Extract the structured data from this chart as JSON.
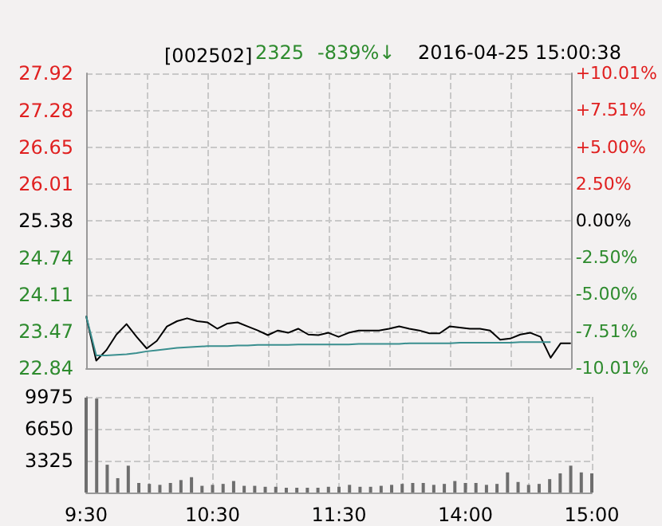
{
  "chart_data": [
    {
      "type": "line",
      "title": "[002502]",
      "annotations": [
        "2325",
        "-839%↓",
        "2016-04-25 15:00:38"
      ],
      "categories": [
        null,
        null,
        null,
        null,
        null,
        null,
        null,
        null,
        null,
        null,
        null,
        null,
        null,
        null,
        null,
        null,
        null,
        null,
        null,
        null,
        null,
        null,
        null,
        null,
        null,
        null,
        null,
        null,
        null,
        null,
        null,
        null,
        null,
        null,
        null,
        null,
        null,
        null,
        null,
        null,
        null,
        null,
        null,
        null,
        null,
        null,
        null,
        null,
        null
      ],
      "ylim": [
        22.84,
        27.92
      ],
      "yticks": [
        22.84,
        23.47,
        24.11,
        24.74,
        25.38,
        26.01,
        26.65,
        27.28,
        27.92
      ],
      "y2lim": [
        -10.01,
        10.01
      ],
      "y2ticks": [
        {
          "value": -10.01,
          "label": "-10.01%"
        },
        {
          "value": -7.51,
          "label": "-7.51%"
        },
        {
          "value": -5.0,
          "label": "-5.00%"
        },
        {
          "value": -2.5,
          "label": "-2.50%"
        },
        {
          "value": 0,
          "label": "0.00%"
        },
        {
          "value": 2.5,
          "label": "2.50%"
        },
        {
          "value": 5.0,
          "label": "+5.00%"
        },
        {
          "value": 7.51,
          "label": "+7.51%"
        },
        {
          "value": 10.01,
          "label": "+10.01%"
        }
      ],
      "grid": true,
      "tick_labels": "y",
      "line_style": "solid",
      "series": [
        {
          "color": "#000000",
          "values": [
            23.74,
            22.97,
            23.15,
            23.42,
            23.6,
            23.38,
            23.18,
            23.31,
            23.56,
            23.65,
            23.7,
            23.65,
            23.63,
            23.52,
            23.61,
            23.63,
            23.56,
            23.49,
            23.41,
            23.49,
            23.45,
            23.52,
            23.42,
            23.41,
            23.45,
            23.38,
            23.45,
            23.49,
            23.49,
            23.49,
            23.52,
            23.56,
            23.52,
            23.49,
            23.44,
            23.44,
            23.56,
            23.54,
            23.52,
            23.52,
            23.49,
            23.33,
            23.35,
            23.42,
            23.45,
            23.38,
            23.02,
            23.27,
            23.27
          ]
        },
        {
          "color": "#3a8f8f",
          "values": [
            23.74,
            23.06,
            23.06,
            23.07,
            23.08,
            23.1,
            23.13,
            23.15,
            23.17,
            23.19,
            23.2,
            23.21,
            23.22,
            23.22,
            23.22,
            23.23,
            23.23,
            23.24,
            23.24,
            23.24,
            23.24,
            23.25,
            23.25,
            23.25,
            23.25,
            23.25,
            23.25,
            23.26,
            23.26,
            23.26,
            23.26,
            23.26,
            23.27,
            23.27,
            23.27,
            23.27,
            23.27,
            23.28,
            23.28,
            23.28,
            23.28,
            23.28,
            23.28,
            23.29,
            23.29,
            23.29,
            23.29,
            null,
            null
          ]
        }
      ]
    },
    {
      "type": "bar",
      "categories": [
        "9:30",
        null,
        null,
        null,
        null,
        null,
        null,
        null,
        null,
        null,
        null,
        null,
        "10:30",
        null,
        null,
        null,
        null,
        null,
        null,
        null,
        null,
        null,
        null,
        null,
        "11:30",
        null,
        null,
        null,
        null,
        null,
        null,
        null,
        null,
        null,
        null,
        null,
        "14:00",
        null,
        null,
        null,
        null,
        null,
        null,
        null,
        null,
        null,
        null,
        null,
        "15:00"
      ],
      "ylim": [
        0,
        9975
      ],
      "yticks": [
        3325,
        6650,
        9975
      ],
      "grid": true,
      "color": "#6e6e6e",
      "values": [
        9900,
        9800,
        2900,
        1500,
        2800,
        1000,
        900,
        800,
        1000,
        1300,
        1600,
        700,
        800,
        900,
        1200,
        700,
        700,
        600,
        600,
        500,
        500,
        500,
        500,
        600,
        600,
        800,
        600,
        600,
        700,
        800,
        900,
        1000,
        1000,
        800,
        900,
        1200,
        1000,
        1000,
        800,
        900,
        2100,
        1100,
        800,
        900,
        1400,
        2000,
        2800,
        2100,
        2000
      ]
    }
  ]
}
